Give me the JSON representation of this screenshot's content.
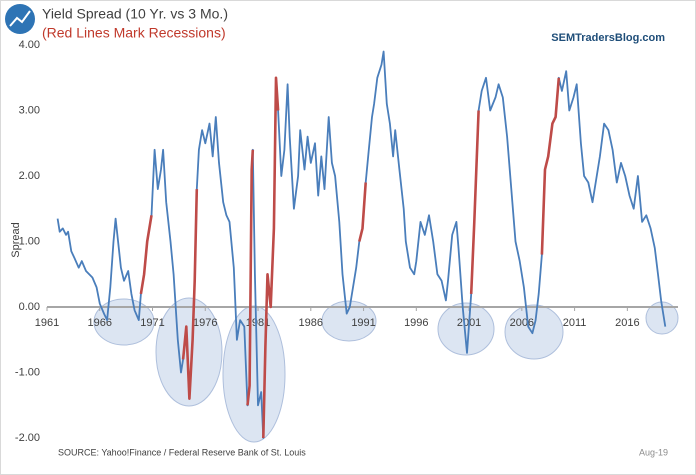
{
  "chart_data": {
    "type": "line",
    "title": "Yield Spread (10 Yr. vs 3 Mo.)",
    "subtitle": "(Red Lines Mark Recessions)",
    "brand": "SEMTradersBlog.com",
    "ylabel": "Spread",
    "source": "SOURCE:  Yahoo!Finance / Federal Reserve Bank of St. Louis",
    "date_note": "Aug-19",
    "xlim": [
      1961,
      2020.8
    ],
    "xticks": [
      1961,
      1966,
      1971,
      1976,
      1981,
      1986,
      1991,
      1996,
      2001,
      2006,
      2011,
      2016
    ],
    "ylim": [
      -2,
      4
    ],
    "yticks": [
      {
        "value": -2,
        "label": "-2.00"
      },
      {
        "value": -1,
        "label": "-1.00"
      },
      {
        "value": 0,
        "label": "0.00"
      },
      {
        "value": 1,
        "label": "1.00"
      },
      {
        "value": 2,
        "label": "2.00"
      },
      {
        "value": 3,
        "label": "3.00"
      },
      {
        "value": 4,
        "label": "4.00"
      }
    ],
    "grid": false,
    "series": [
      {
        "color": "#4a7ebb",
        "x": [
          1962.0,
          1962.2,
          1962.5,
          1962.8,
          1963.0,
          1963.3,
          1963.6,
          1964.0,
          1964.3,
          1964.7,
          1965.0,
          1965.3,
          1965.7,
          1966.0,
          1966.4,
          1966.7,
          1967.0,
          1967.3,
          1967.5,
          1967.8,
          1968.0,
          1968.3,
          1968.7,
          1969.0,
          1969.3,
          1969.7,
          1969.9,
          1970.2,
          1970.5,
          1970.9,
          1971.2,
          1971.5,
          1971.8,
          1972.0,
          1972.3,
          1972.7,
          1973.0,
          1973.4,
          1973.7,
          1973.9,
          1974.2,
          1974.5,
          1974.8,
          1975.0,
          1975.2,
          1975.4,
          1975.7,
          1976.0,
          1976.4,
          1976.7,
          1977.0,
          1977.3,
          1977.7,
          1978.0,
          1978.3,
          1978.7,
          1979.0,
          1979.3,
          1979.7,
          1980.0,
          1980.2,
          1980.4,
          1980.5,
          1980.7,
          1981.0,
          1981.3,
          1981.5,
          1981.7,
          1981.9,
          1982.2,
          1982.5,
          1982.7,
          1982.9,
          1983.2,
          1983.5,
          1983.8,
          1984.0,
          1984.4,
          1984.8,
          1985.0,
          1985.4,
          1985.7,
          1986.0,
          1986.4,
          1986.7,
          1987.0,
          1987.3,
          1987.7,
          1988.0,
          1988.3,
          1988.7,
          1989.0,
          1989.4,
          1989.7,
          1990.0,
          1990.3,
          1990.6,
          1990.9,
          1991.2,
          1991.5,
          1991.8,
          1992.0,
          1992.3,
          1992.7,
          1992.9,
          1993.2,
          1993.5,
          1993.8,
          1994.0,
          1994.4,
          1994.8,
          1995.0,
          1995.4,
          1995.8,
          1996.0,
          1996.4,
          1996.8,
          1997.2,
          1997.6,
          1998.0,
          1998.4,
          1998.8,
          1999.0,
          1999.4,
          1999.8,
          2000.0,
          2000.4,
          2000.8,
          2001.2,
          2001.5,
          2001.9,
          2002.2,
          2002.6,
          2003.0,
          2003.5,
          2003.8,
          2004.2,
          2004.6,
          2005.0,
          2005.4,
          2005.8,
          2006.2,
          2006.6,
          2007.0,
          2007.3,
          2007.6,
          2007.9,
          2008.2,
          2008.5,
          2008.9,
          2009.2,
          2009.5,
          2009.8,
          2010.2,
          2010.5,
          2010.9,
          2011.2,
          2011.6,
          2011.9,
          2012.3,
          2012.7,
          2013.0,
          2013.4,
          2013.8,
          2014.2,
          2014.6,
          2015.0,
          2015.4,
          2015.8,
          2016.2,
          2016.6,
          2017.0,
          2017.4,
          2017.8,
          2018.2,
          2018.6,
          2018.9,
          2019.2,
          2019.4,
          2019.6
        ],
        "values": [
          1.35,
          1.15,
          1.2,
          1.1,
          1.15,
          0.85,
          0.75,
          0.6,
          0.7,
          0.55,
          0.5,
          0.45,
          0.3,
          0.05,
          -0.1,
          -0.2,
          0.3,
          1.0,
          1.35,
          0.9,
          0.6,
          0.4,
          0.55,
          0.2,
          -0.05,
          -0.2,
          0.2,
          0.5,
          1.0,
          1.4,
          2.4,
          1.8,
          2.1,
          2.4,
          1.6,
          1.0,
          0.5,
          -0.5,
          -1.0,
          -0.8,
          -0.3,
          -1.4,
          -0.5,
          0.4,
          1.8,
          2.4,
          2.7,
          2.5,
          2.8,
          2.3,
          2.9,
          2.2,
          1.6,
          1.4,
          1.3,
          0.6,
          -0.5,
          -0.2,
          -0.3,
          -1.5,
          -1.2,
          2.1,
          2.4,
          0.5,
          -1.5,
          -1.3,
          -2.0,
          -0.6,
          0.5,
          0.0,
          1.2,
          3.5,
          3.0,
          2.0,
          2.4,
          3.4,
          2.6,
          1.5,
          2.0,
          2.7,
          2.1,
          2.6,
          2.2,
          2.5,
          1.7,
          2.3,
          1.8,
          2.9,
          2.2,
          2.0,
          1.3,
          0.5,
          -0.1,
          0.0,
          0.3,
          0.6,
          1.0,
          1.2,
          1.9,
          2.4,
          2.9,
          3.1,
          3.5,
          3.7,
          3.9,
          3.1,
          2.8,
          2.3,
          2.7,
          2.1,
          1.5,
          1.0,
          0.6,
          0.5,
          0.7,
          1.3,
          1.1,
          1.4,
          1.0,
          0.5,
          0.4,
          0.1,
          0.4,
          1.1,
          1.3,
          0.9,
          0.0,
          -0.7,
          0.2,
          1.3,
          3.0,
          3.3,
          3.5,
          3.0,
          3.2,
          3.4,
          3.2,
          2.6,
          1.8,
          1.0,
          0.7,
          0.3,
          -0.3,
          -0.4,
          -0.2,
          0.2,
          0.8,
          2.1,
          2.3,
          2.8,
          2.9,
          3.5,
          3.3,
          3.6,
          3.0,
          3.2,
          3.4,
          2.5,
          2.0,
          1.9,
          1.6,
          1.9,
          2.3,
          2.8,
          2.7,
          2.4,
          1.9,
          2.2,
          2.0,
          1.7,
          1.5,
          2.0,
          1.3,
          1.4,
          1.2,
          0.9,
          0.5,
          0.1,
          -0.1,
          -0.3
        ]
      },
      {
        "color": "#be4b48",
        "x": [
          1969.9,
          1970.2,
          1970.5,
          1970.9,
          null,
          1973.9,
          1974.2,
          1974.5,
          1974.8,
          1975.0,
          1975.2,
          null,
          1980.0,
          1980.2,
          1980.4,
          1980.5,
          null,
          1981.5,
          1981.7,
          1981.9,
          1982.2,
          1982.5,
          1982.7,
          1982.9,
          null,
          1990.6,
          1990.9,
          1991.2,
          null,
          2001.2,
          2001.5,
          2001.9,
          null,
          2007.9,
          2008.2,
          2008.5,
          2008.9,
          2009.2,
          2009.5
        ],
        "values": [
          0.2,
          0.5,
          1.0,
          1.4,
          null,
          -0.8,
          -0.3,
          -1.4,
          -0.5,
          0.4,
          1.8,
          null,
          -1.5,
          -1.2,
          2.1,
          2.4,
          null,
          -2.0,
          -0.6,
          0.5,
          0.0,
          1.2,
          3.5,
          3.0,
          null,
          1.0,
          1.2,
          1.9,
          null,
          0.2,
          1.3,
          3.0,
          null,
          0.8,
          2.1,
          2.3,
          2.8,
          2.9,
          3.5
        ]
      }
    ]
  }
}
